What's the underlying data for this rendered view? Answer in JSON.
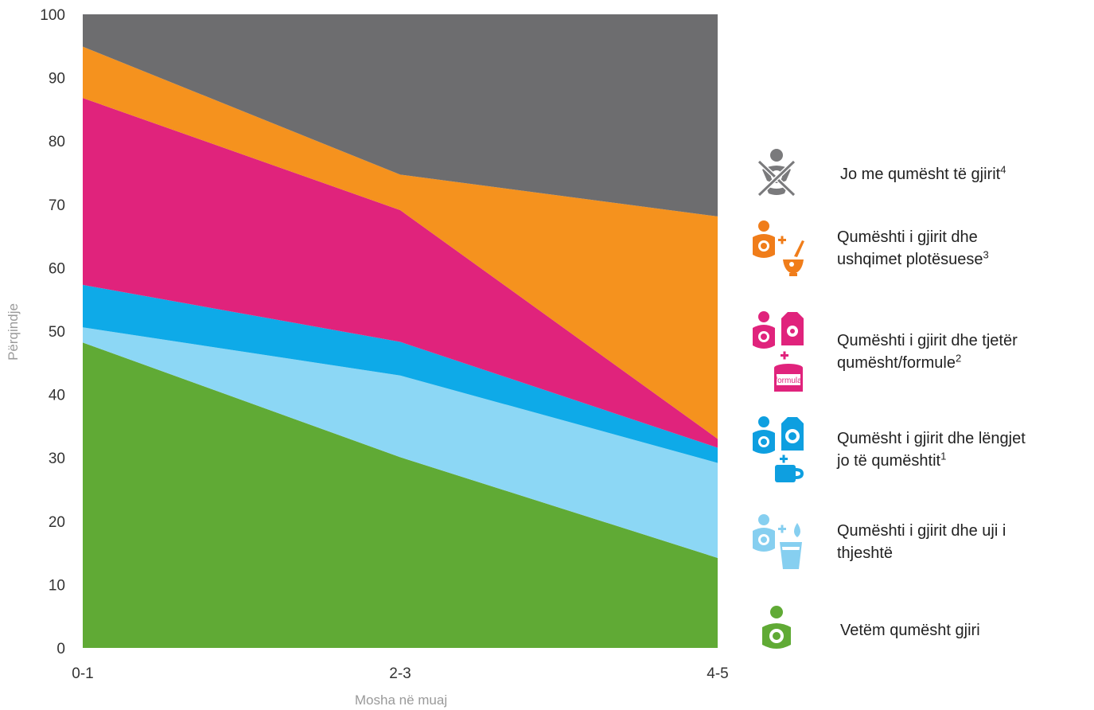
{
  "chart_data": {
    "type": "area",
    "stacked": true,
    "categories": [
      "0-1",
      "2-3",
      "4-5"
    ],
    "xlabel": "Mosha në muaj",
    "ylabel": "Përqindje",
    "ylim": [
      0,
      100
    ],
    "yticks": [
      0,
      10,
      20,
      30,
      40,
      50,
      60,
      70,
      80,
      90,
      100
    ],
    "ytick_labels": [
      "0",
      "10",
      "20",
      "30",
      "40",
      "50",
      "60",
      "70",
      "80",
      "90",
      "100"
    ],
    "grid": false,
    "legend_position": "right",
    "series": [
      {
        "name": "Vetëm qumësht gjiri",
        "values": [
          48.2,
          30.1,
          14.2
        ],
        "color": "#60aa35",
        "icon": "breastfeeding-icon"
      },
      {
        "name": "Qumështi i gjirit dhe uji i thjeshtë",
        "values": [
          2.4,
          12.9,
          15.0
        ],
        "color": "#8cd7f5",
        "icon": "breastfeeding-water-icon"
      },
      {
        "name": "Qumësht i gjirit dhe lëngjet jo të qumështit",
        "note": "1",
        "values": [
          6.7,
          5.3,
          2.4
        ],
        "color": "#0eaae8",
        "icon": "breastfeeding-juice-icon"
      },
      {
        "name": "Qumështi i gjirit dhe tjetër qumësht/formule",
        "note": "2",
        "values": [
          29.5,
          20.8,
          1.4
        ],
        "color": "#e0237c",
        "icon": "breastfeeding-formula-icon"
      },
      {
        "name": "Qumështi i gjirit dhe ushqimet plotësuese",
        "note": "3",
        "values": [
          8.1,
          5.6,
          35.1
        ],
        "color": "#f5921e",
        "icon": "breastfeeding-food-icon"
      },
      {
        "name": "Jo me qumësht të gjirit",
        "note": "4",
        "values": [
          5.1,
          25.3,
          31.9
        ],
        "color": "#6d6d6f",
        "icon": "not-breastfed-icon"
      }
    ]
  },
  "legend": {
    "not_breastfed": {
      "line1": "Jo me qumësht të gjirit",
      "sup": "4"
    },
    "complementary": {
      "line1": "Qumështi i gjirit dhe",
      "line2": "ushqimet plotësuese",
      "sup": "3"
    },
    "formula": {
      "line1": "Qumështi i gjirit dhe tjetër",
      "line2": "qumësht/formule",
      "sup": "2"
    },
    "juice": {
      "line1": "Qumësht i gjirit dhe lëngjet",
      "line2": "jo të qumështit",
      "sup": "1"
    },
    "water": {
      "line1": "Qumështi i gjirit dhe uji i",
      "line2": "thjeshtë"
    },
    "exclusive": {
      "line1": "Vetëm qumësht gjiri"
    }
  },
  "icon_labels": {
    "formula_can": "formula"
  }
}
